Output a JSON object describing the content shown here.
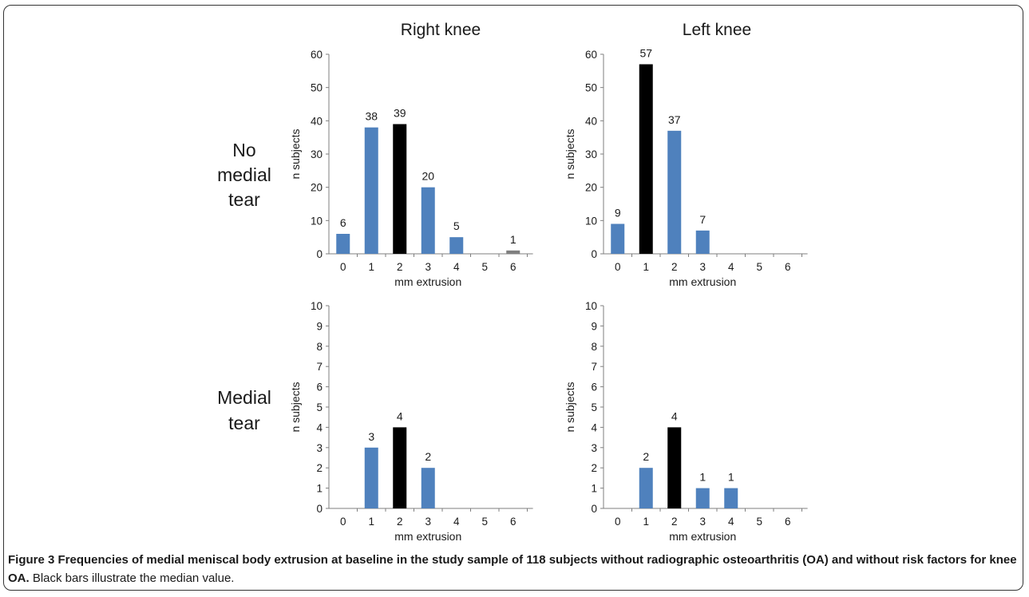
{
  "colors": {
    "regular_bar": "#4f81bd",
    "median_bar": "#000000",
    "outlier_bar": "#7f7f7f",
    "axis": "#7f7f7f"
  },
  "column_titles": [
    "Right knee",
    "Left knee"
  ],
  "row_labels": [
    [
      "No",
      "medial",
      "tear"
    ],
    [
      "Medial",
      "tear"
    ]
  ],
  "chart_data": [
    {
      "type": "bar",
      "row": "No medial tear",
      "column": "Right knee",
      "categories": [
        "0",
        "1",
        "2",
        "3",
        "4",
        "5",
        "6"
      ],
      "values": [
        6,
        38,
        39,
        20,
        5,
        0,
        1
      ],
      "median_category": "2",
      "bar_colors": [
        "#4f81bd",
        "#4f81bd",
        "#000000",
        "#4f81bd",
        "#4f81bd",
        "#4f81bd",
        "#7f7f7f"
      ],
      "xlabel": "mm extrusion",
      "ylabel": "n subjects",
      "ylim": [
        0,
        60
      ],
      "yticks": [
        0,
        10,
        20,
        30,
        40,
        50,
        60
      ]
    },
    {
      "type": "bar",
      "row": "No medial tear",
      "column": "Left knee",
      "categories": [
        "0",
        "1",
        "2",
        "3",
        "4",
        "5",
        "6"
      ],
      "values": [
        9,
        57,
        37,
        7,
        0,
        0,
        0
      ],
      "median_category": "1",
      "bar_colors": [
        "#4f81bd",
        "#000000",
        "#4f81bd",
        "#4f81bd",
        "#4f81bd",
        "#4f81bd",
        "#4f81bd"
      ],
      "xlabel": "mm extrusion",
      "ylabel": "n subjects",
      "ylim": [
        0,
        60
      ],
      "yticks": [
        0,
        10,
        20,
        30,
        40,
        50,
        60
      ]
    },
    {
      "type": "bar",
      "row": "Medial tear",
      "column": "Right knee",
      "categories": [
        "0",
        "1",
        "2",
        "3",
        "4",
        "5",
        "6"
      ],
      "values": [
        0,
        3,
        4,
        2,
        0,
        0,
        0
      ],
      "median_category": "2",
      "bar_colors": [
        "#4f81bd",
        "#4f81bd",
        "#000000",
        "#4f81bd",
        "#4f81bd",
        "#4f81bd",
        "#4f81bd"
      ],
      "xlabel": "mm extrusion",
      "ylabel": "n subjects",
      "ylim": [
        0,
        10
      ],
      "yticks": [
        0,
        1,
        2,
        3,
        4,
        5,
        6,
        7,
        8,
        9,
        10
      ]
    },
    {
      "type": "bar",
      "row": "Medial tear",
      "column": "Left knee",
      "categories": [
        "0",
        "1",
        "2",
        "3",
        "4",
        "5",
        "6"
      ],
      "values": [
        0,
        2,
        4,
        1,
        1,
        0,
        0
      ],
      "median_category": "2",
      "bar_colors": [
        "#4f81bd",
        "#4f81bd",
        "#000000",
        "#4f81bd",
        "#4f81bd",
        "#4f81bd",
        "#4f81bd"
      ],
      "xlabel": "mm extrusion",
      "ylabel": "n subjects",
      "ylim": [
        0,
        10
      ],
      "yticks": [
        0,
        1,
        2,
        3,
        4,
        5,
        6,
        7,
        8,
        9,
        10
      ]
    }
  ],
  "caption": {
    "bold": "Figure 3 Frequencies of medial meniscal body extrusion at baseline in the study sample of 118 subjects without radiographic osteoarthritis (OA) and without risk factors for knee OA.",
    "normal": " Black bars illustrate the median value."
  }
}
